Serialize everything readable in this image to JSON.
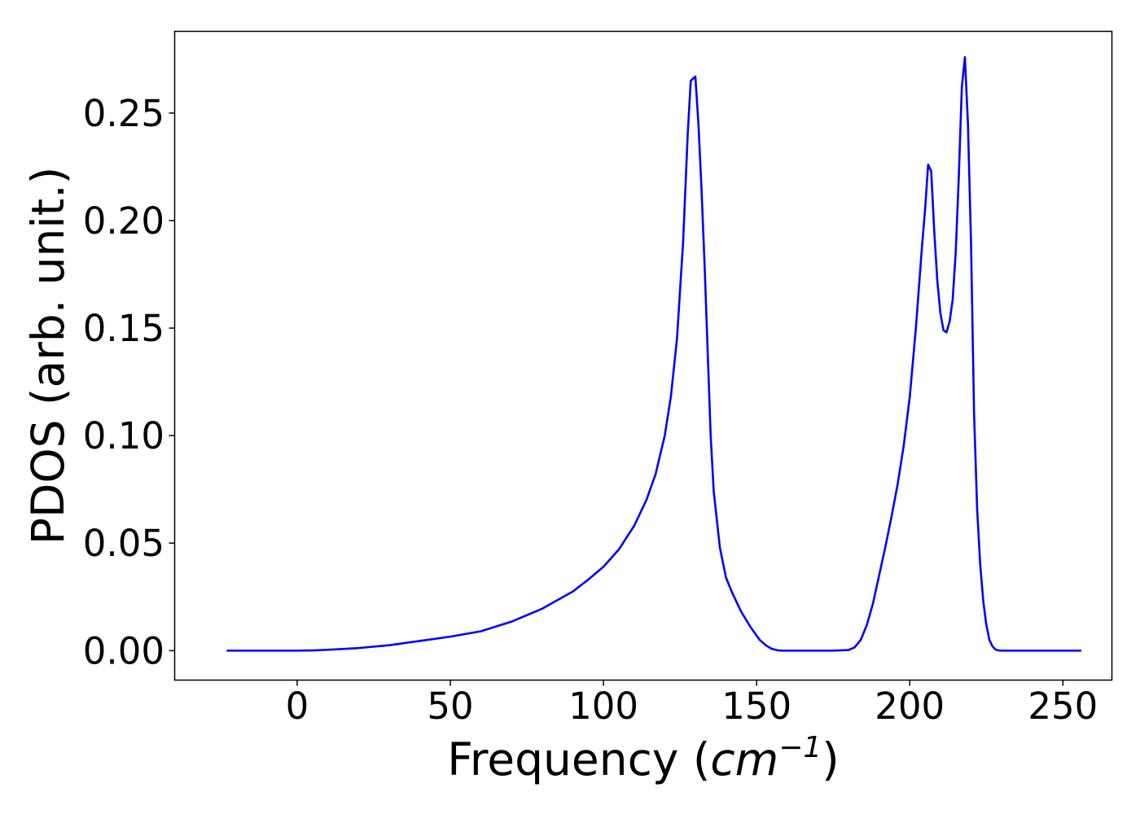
{
  "chart_data": {
    "type": "line",
    "title": "",
    "xlabel": "Frequency",
    "xlabel_unit_base": "cm",
    "xlabel_unit_exp": "−1",
    "ylabel": "PDOS (arb. unit.)",
    "xlim": [
      -40,
      266
    ],
    "ylim": [
      -0.0137,
      0.288
    ],
    "x_ticks": [
      0,
      50,
      100,
      150,
      200,
      250
    ],
    "x_tick_labels": [
      "0",
      "50",
      "100",
      "150",
      "200",
      "250"
    ],
    "y_ticks": [
      0.0,
      0.05,
      0.1,
      0.15,
      0.2,
      0.25
    ],
    "y_tick_labels": [
      "0.00",
      "0.05",
      "0.10",
      "0.15",
      "0.20",
      "0.25"
    ],
    "grid": false,
    "legend": "none",
    "series": [
      {
        "color": "#0000ff",
        "x": [
          -23,
          -10,
          0,
          5,
          10,
          20,
          30,
          40,
          50,
          60,
          70,
          80,
          90,
          95,
          100,
          105,
          110,
          114,
          117,
          120,
          122,
          124,
          126,
          127.5,
          128.5,
          130,
          131,
          132,
          133,
          134,
          135,
          136,
          138,
          140,
          142,
          145,
          148,
          151,
          153,
          155,
          157,
          159,
          165,
          175,
          180,
          182,
          184,
          186,
          188,
          190,
          192,
          194,
          196,
          198,
          200,
          202,
          204,
          205,
          206,
          207,
          208,
          209,
          210,
          211,
          212,
          213,
          214,
          215,
          216,
          217,
          218,
          219,
          220,
          221,
          222,
          223,
          224,
          225,
          226,
          227,
          228,
          229,
          230,
          231,
          232,
          233,
          234,
          236,
          238,
          240,
          245,
          256
        ],
        "y": [
          0,
          0,
          0,
          0.0001,
          0.0004,
          0.0012,
          0.0025,
          0.0045,
          0.0065,
          0.009,
          0.0135,
          0.0195,
          0.0275,
          0.033,
          0.039,
          0.047,
          0.058,
          0.07,
          0.082,
          0.1,
          0.118,
          0.145,
          0.19,
          0.24,
          0.265,
          0.267,
          0.245,
          0.215,
          0.18,
          0.14,
          0.1,
          0.074,
          0.048,
          0.034,
          0.027,
          0.018,
          0.011,
          0.005,
          0.0025,
          0.0008,
          0.0001,
          0,
          0,
          0,
          0.0003,
          0.0015,
          0.005,
          0.012,
          0.022,
          0.035,
          0.048,
          0.062,
          0.077,
          0.095,
          0.118,
          0.15,
          0.188,
          0.205,
          0.226,
          0.223,
          0.195,
          0.172,
          0.157,
          0.149,
          0.148,
          0.153,
          0.163,
          0.185,
          0.22,
          0.262,
          0.276,
          0.245,
          0.19,
          0.11,
          0.066,
          0.04,
          0.023,
          0.012,
          0.005,
          0.002,
          0.0005,
          0.0001,
          0,
          0,
          0,
          0,
          0,
          0,
          0,
          0,
          0,
          0
        ]
      }
    ]
  }
}
